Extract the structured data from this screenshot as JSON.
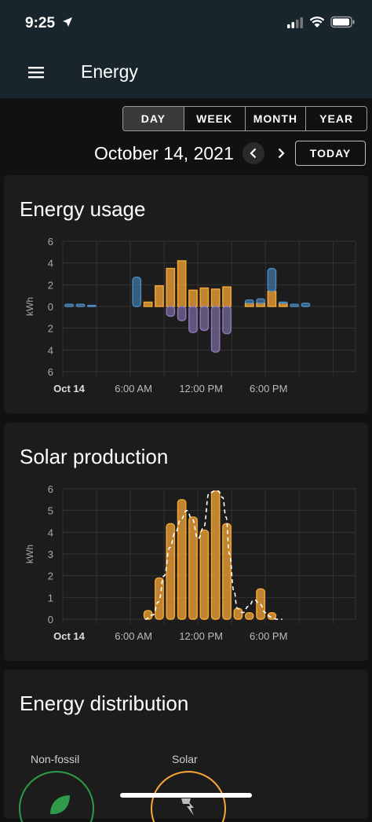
{
  "status_bar": {
    "time": "9:25"
  },
  "app_bar": {
    "title": "Energy"
  },
  "period_tabs": [
    {
      "label": "DAY",
      "active": true
    },
    {
      "label": "WEEK",
      "active": false
    },
    {
      "label": "MONTH",
      "active": false
    },
    {
      "label": "YEAR",
      "active": false
    }
  ],
  "date_nav": {
    "date": "October 14, 2021",
    "today_label": "TODAY"
  },
  "colors": {
    "grid_consumption": "#4a8bc2",
    "solar": "#f7a737",
    "return_to_grid": "#8c7ab8"
  },
  "energy_usage": {
    "title": "Energy usage"
  },
  "solar_production": {
    "title": "Solar production"
  },
  "distribution": {
    "title": "Energy distribution",
    "nodes": [
      {
        "label": "Non-fossil"
      },
      {
        "label": "Solar"
      }
    ]
  },
  "chart_data": [
    {
      "type": "bar",
      "title": "Energy usage",
      "ylabel": "kWh",
      "y_ticks_top": [
        "6",
        "4",
        "2",
        "0"
      ],
      "y_ticks_bottom": [
        "2",
        "4",
        "6"
      ],
      "ylim": [
        -6,
        6
      ],
      "x_tick_labels": [
        "Oct 14",
        "6:00 AM",
        "12:00 PM",
        "6:00 PM"
      ],
      "x_tick_hours": [
        0,
        6,
        12,
        18
      ],
      "hours": [
        0,
        1,
        2,
        3,
        4,
        5,
        6,
        7,
        8,
        9,
        10,
        11,
        12,
        13,
        14,
        15,
        16,
        17,
        18,
        19,
        20,
        21,
        22,
        23
      ],
      "series": [
        {
          "key": "grid",
          "values": [
            0.2,
            0.2,
            0.1,
            0,
            0,
            0,
            2.7,
            0,
            0,
            0,
            0,
            0,
            0,
            0,
            0,
            0,
            0.3,
            0.4,
            2.1,
            0.1,
            0.2,
            0.3,
            0,
            0
          ]
        },
        {
          "key": "solar",
          "values": [
            0,
            0,
            0,
            0,
            0,
            0,
            0,
            0.4,
            1.9,
            3.5,
            4.2,
            1.5,
            1.7,
            1.6,
            1.8,
            0,
            0.3,
            0.3,
            1.4,
            0.3,
            0,
            0,
            0,
            0
          ]
        },
        {
          "key": "return",
          "values": [
            0,
            0,
            0,
            0,
            0,
            0,
            0,
            0,
            0,
            -0.9,
            -1.3,
            -2.4,
            -2.2,
            -4.2,
            -2.5,
            0,
            0,
            0,
            0,
            0,
            0,
            0,
            0,
            0
          ]
        }
      ]
    },
    {
      "type": "bar",
      "title": "Solar production",
      "ylabel": "kWh",
      "y_ticks": [
        "6",
        "5",
        "4",
        "3",
        "2",
        "1",
        "0"
      ],
      "ylim": [
        0,
        6
      ],
      "x_tick_labels": [
        "Oct 14",
        "6:00 AM",
        "12:00 PM",
        "6:00 PM"
      ],
      "x_tick_hours": [
        0,
        6,
        12,
        18
      ],
      "hours": [
        7,
        8,
        9,
        10,
        11,
        12,
        13,
        14,
        15,
        16,
        17,
        18,
        19
      ],
      "values": [
        0.4,
        1.9,
        4.4,
        5.5,
        4.7,
        4.1,
        5.9,
        4.4,
        0.5,
        0.3,
        1.4,
        0.3,
        0
      ],
      "forecast_x": [
        6.8,
        7.5,
        8.0,
        8.5,
        9.0,
        9.5,
        10.0,
        10.5,
        11.0,
        11.5,
        12.0,
        12.5,
        13.0,
        13.3,
        13.7,
        14.0,
        14.3,
        14.7,
        15.0,
        15.5,
        16.0,
        16.5,
        17.0,
        17.5,
        18.0,
        18.5,
        19.0
      ],
      "forecast_y": [
        0,
        0.2,
        0.8,
        2.0,
        3.3,
        4.0,
        4.6,
        5.0,
        4.6,
        3.7,
        4.2,
        5.8,
        5.9,
        5.9,
        5.6,
        4.7,
        3.0,
        1.3,
        0.5,
        0.3,
        0.6,
        0.9,
        0.7,
        0.3,
        0.1,
        0,
        0
      ]
    }
  ]
}
